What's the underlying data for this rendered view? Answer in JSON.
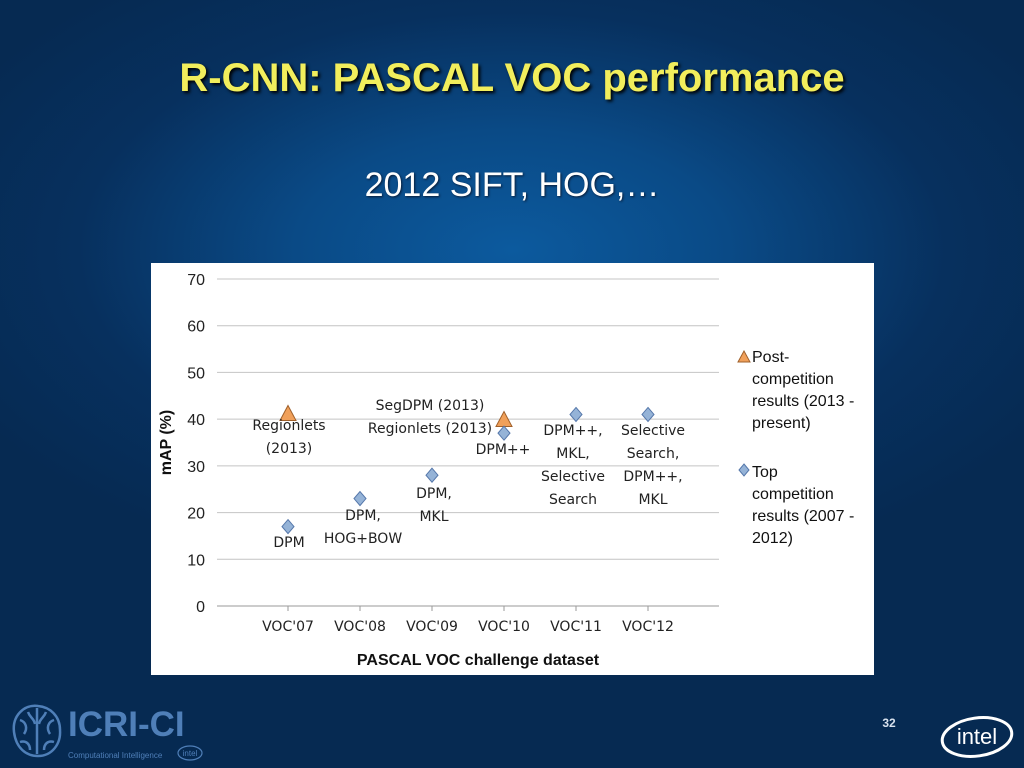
{
  "slide": {
    "title": "R-CNN: PASCAL VOC performance",
    "subtitle": "2012 SIFT, HOG,…",
    "page_number": "32"
  },
  "logos": {
    "left": "ICRI-CI",
    "left_tagline": "Computational Intelligence",
    "right": "intel"
  },
  "chart_data": {
    "type": "scatter",
    "title": "",
    "xlabel": "PASCAL VOC challenge dataset",
    "ylabel": "mAP (%)",
    "categories": [
      "VOC'07",
      "VOC'08",
      "VOC'09",
      "VOC'10",
      "VOC'11",
      "VOC'12"
    ],
    "ylim": [
      0,
      70
    ],
    "yticks": [
      0,
      10,
      20,
      30,
      40,
      50,
      60,
      70
    ],
    "grid": true,
    "legend_position": "right",
    "series": [
      {
        "name": "Post-competition results (2013 - present)",
        "legend_text": "Post-\ncompetition\nresults (2013 -\npresent)",
        "marker": "triangle",
        "color": "#f0a05a",
        "points": [
          {
            "x": "VOC'07",
            "y": 41
          },
          {
            "x": "VOC'10",
            "y": 39.7
          }
        ]
      },
      {
        "name": "Top competition results (2007 - 2012)",
        "legend_text": "Top\ncompetition\nresults (2007 -\n2012)",
        "marker": "diamond",
        "color": "#95b3d7",
        "points": [
          {
            "x": "VOC'07",
            "y": 17
          },
          {
            "x": "VOC'08",
            "y": 23
          },
          {
            "x": "VOC'09",
            "y": 28
          },
          {
            "x": "VOC'10",
            "y": 37
          },
          {
            "x": "VOC'11",
            "y": 41
          },
          {
            "x": "VOC'12",
            "y": 41
          }
        ]
      }
    ],
    "annotations": [
      {
        "text": "Regionlets\n(2013)"
      },
      {
        "text": "DPM"
      },
      {
        "text": "DPM,\nHOG+BOW"
      },
      {
        "text": "DPM,\nMKL"
      },
      {
        "text": "SegDPM (2013)\nRegionlets (2013)"
      },
      {
        "text": "DPM++"
      },
      {
        "text": "DPM++,\nMKL,\nSelective\nSearch"
      },
      {
        "text": "Selective\nSearch,\nDPM++,\nMKL"
      }
    ]
  }
}
